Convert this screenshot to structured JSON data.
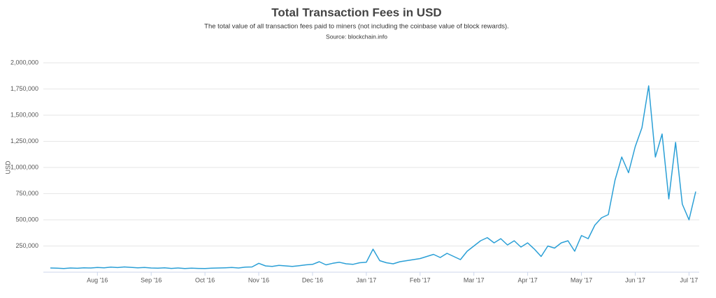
{
  "chart_data": {
    "type": "line",
    "title": "Total Transaction Fees in USD",
    "subtitle": "The total value of all transaction fees paid to miners (not including the coinbase value of block rewards).",
    "source": "Source: blockchain.info",
    "y_label": "USD",
    "color": "#2a9fd6",
    "grid": true,
    "ylim": [
      0,
      2000000
    ],
    "yticks": [
      {
        "value": 250000,
        "label": "250,000"
      },
      {
        "value": 500000,
        "label": "500,000"
      },
      {
        "value": 750000,
        "label": "750,000"
      },
      {
        "value": 1000000,
        "label": "1,000,000"
      },
      {
        "value": 1250000,
        "label": "1,250,000"
      },
      {
        "value": 1500000,
        "label": "1,500,000"
      },
      {
        "value": 1750000,
        "label": "1,750,000"
      },
      {
        "value": 2000000,
        "label": "2,000,000"
      }
    ],
    "categories": [
      null,
      null,
      null,
      null,
      null,
      null,
      null,
      "Aug '16",
      null,
      null,
      null,
      null,
      null,
      null,
      null,
      "Sep '16",
      null,
      null,
      null,
      null,
      null,
      null,
      null,
      "Oct '16",
      null,
      null,
      null,
      null,
      null,
      null,
      null,
      "Nov '16",
      null,
      null,
      null,
      null,
      null,
      null,
      null,
      "Dec '16",
      null,
      null,
      null,
      null,
      null,
      null,
      null,
      "Jan '17",
      null,
      null,
      null,
      null,
      null,
      null,
      null,
      "Feb '17",
      null,
      null,
      null,
      null,
      null,
      null,
      null,
      "Mar '17",
      null,
      null,
      null,
      null,
      null,
      null,
      null,
      "Apr '17",
      null,
      null,
      null,
      null,
      null,
      null,
      null,
      "May '17",
      null,
      null,
      null,
      null,
      null,
      null,
      null,
      "Jun '17",
      null,
      null,
      null,
      null,
      null,
      null,
      null,
      "Jul '17",
      null
    ],
    "values": [
      40000,
      38000,
      35000,
      40000,
      37000,
      42000,
      40000,
      45000,
      42000,
      48000,
      44000,
      50000,
      46000,
      42000,
      45000,
      40000,
      38000,
      42000,
      36000,
      40000,
      35000,
      38000,
      36000,
      35000,
      38000,
      40000,
      42000,
      45000,
      40000,
      48000,
      50000,
      85000,
      60000,
      55000,
      65000,
      60000,
      55000,
      62000,
      70000,
      75000,
      100000,
      70000,
      85000,
      95000,
      80000,
      75000,
      90000,
      95000,
      220000,
      110000,
      90000,
      80000,
      100000,
      110000,
      120000,
      130000,
      150000,
      170000,
      140000,
      180000,
      150000,
      120000,
      200000,
      250000,
      300000,
      330000,
      280000,
      320000,
      260000,
      300000,
      240000,
      280000,
      220000,
      150000,
      250000,
      230000,
      280000,
      300000,
      200000,
      350000,
      320000,
      450000,
      520000,
      550000,
      880000,
      1100000,
      950000,
      1200000,
      1380000,
      1780000,
      1100000,
      1320000,
      700000,
      1240000,
      650000,
      500000,
      770000
    ]
  }
}
